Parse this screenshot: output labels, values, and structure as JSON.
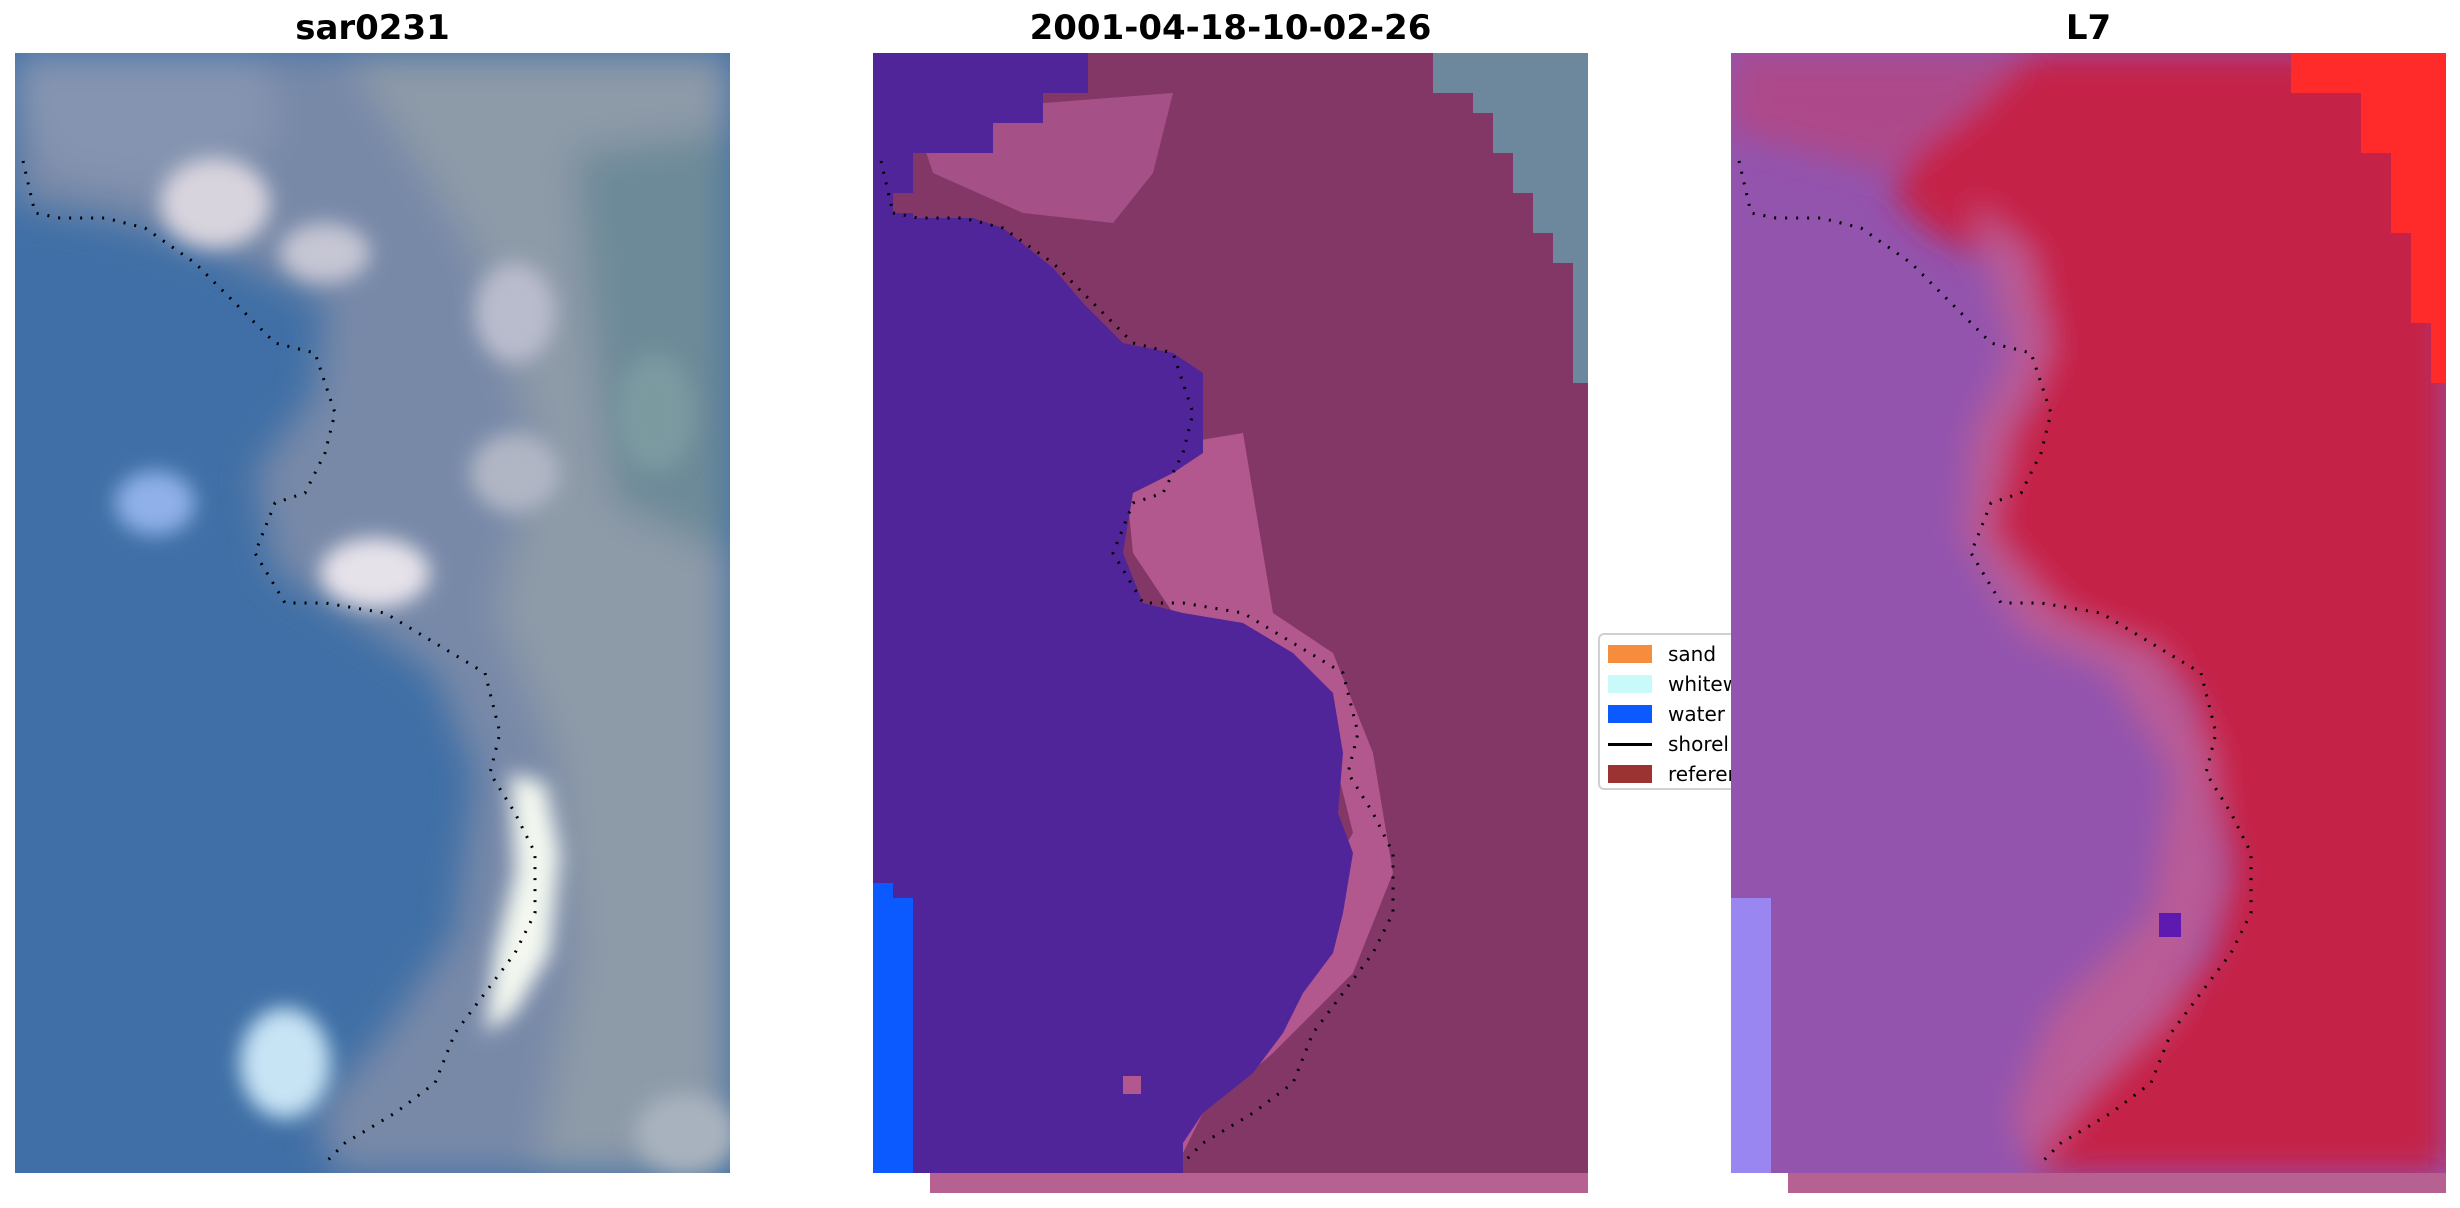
{
  "panels": [
    {
      "title": "sar0231"
    },
    {
      "title": "2001-04-18-10-02-26"
    },
    {
      "title": "L7"
    }
  ],
  "legend": {
    "items": [
      {
        "label": "sand",
        "color": "#f58d3c"
      },
      {
        "label": "whitew",
        "color": "#c8fafa"
      },
      {
        "label": "water",
        "color": "#0a5aff"
      },
      {
        "label": "shorel",
        "color": "#000000"
      },
      {
        "label": "referen",
        "color": "#9c3333"
      }
    ]
  },
  "colors": {
    "rgb_water": "#3f6fa6",
    "classified_water": "#50259a",
    "classified_land": "#823767",
    "classified_water_class": "#0a5aff",
    "l7_water": "#9354ae",
    "l7_land": "#c52047"
  },
  "icons": [
    "shoreline-dots"
  ]
}
